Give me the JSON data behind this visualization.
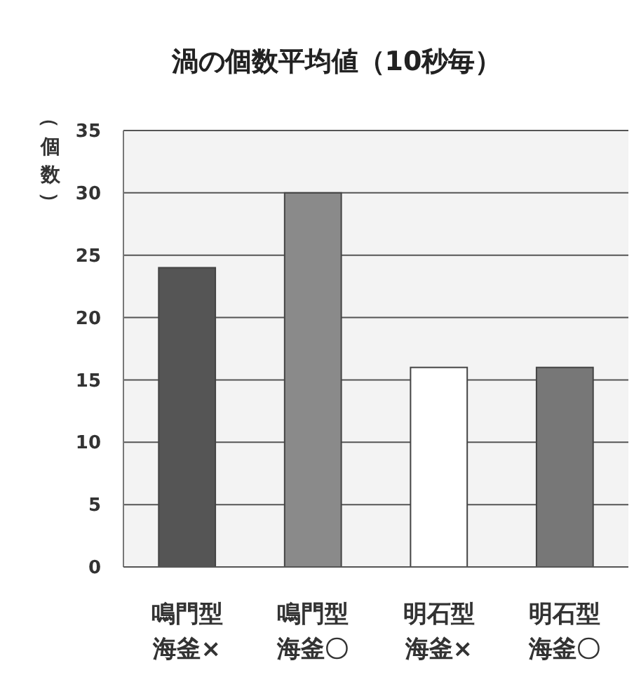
{
  "chart_data": {
    "type": "bar",
    "title": "渦の個数平均値（10秒毎）",
    "ylabel": "（個数）",
    "categories": [
      "鳴門型海釜×",
      "鳴門型海釜〇",
      "明石型海釜×",
      "明石型海釜〇"
    ],
    "values": [
      24,
      30,
      16,
      16
    ],
    "colors": [
      "#555555",
      "#8a8a8a",
      "#ffffff",
      "#777777"
    ],
    "ylim": [
      0,
      35
    ],
    "yticks": [
      0,
      5,
      10,
      15,
      20,
      25,
      30,
      35
    ],
    "grid": "y"
  }
}
